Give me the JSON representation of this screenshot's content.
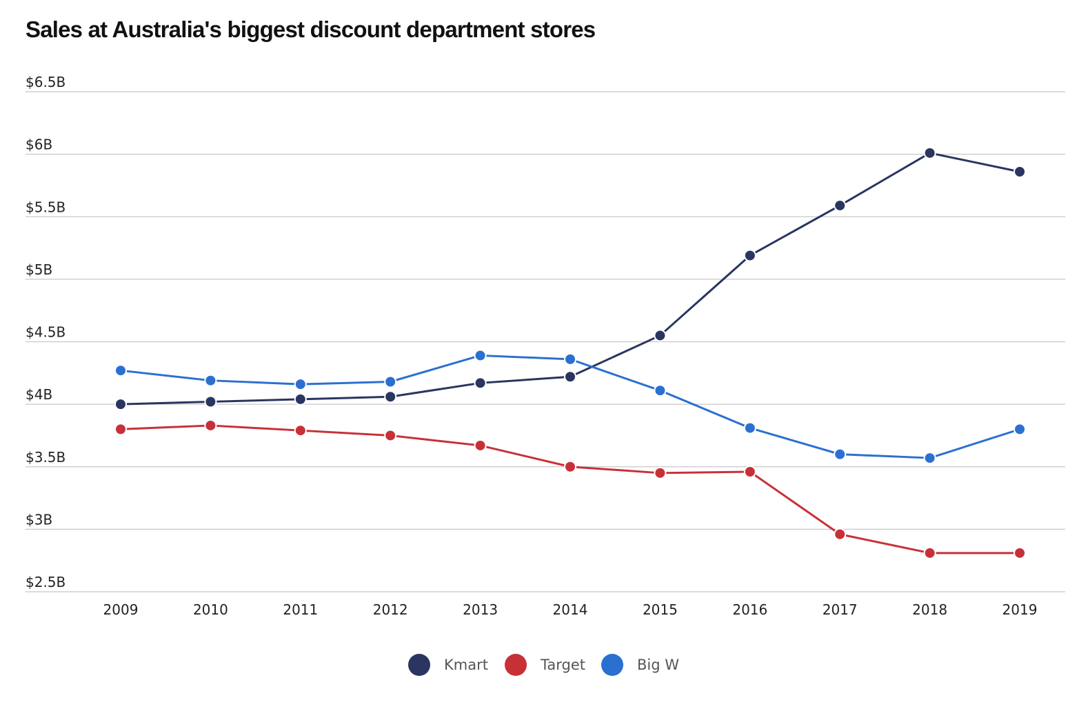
{
  "chart_data": {
    "type": "line",
    "title": "Sales at Australia's biggest discount department stores",
    "xlabel": "",
    "ylabel": "",
    "x": [
      "2009",
      "2010",
      "2011",
      "2012",
      "2013",
      "2014",
      "2015",
      "2016",
      "2017",
      "2018",
      "2019"
    ],
    "yticks": [
      2.5,
      3,
      3.5,
      4,
      4.5,
      5,
      5.5,
      6,
      6.5
    ],
    "ytick_labels": [
      "$2.5B",
      "$3B",
      "$3.5B",
      "$4B",
      "$4.5B",
      "$5B",
      "$5.5B",
      "$6B",
      "$6.5B"
    ],
    "ylim": [
      2.5,
      6.5
    ],
    "grid": true,
    "legend_position": "bottom-center",
    "series": [
      {
        "name": "Kmart",
        "color": "#2a3560",
        "values": [
          4.0,
          4.02,
          4.04,
          4.06,
          4.17,
          4.22,
          4.55,
          5.19,
          5.59,
          6.01,
          5.86
        ]
      },
      {
        "name": "Target",
        "color": "#c83038",
        "values": [
          3.8,
          3.83,
          3.79,
          3.75,
          3.67,
          3.5,
          3.45,
          3.46,
          2.96,
          2.81,
          2.81
        ]
      },
      {
        "name": "Big W",
        "color": "#2b70d0",
        "values": [
          4.27,
          4.19,
          4.16,
          4.18,
          4.39,
          4.36,
          4.11,
          3.81,
          3.6,
          3.57,
          3.8
        ]
      }
    ]
  }
}
